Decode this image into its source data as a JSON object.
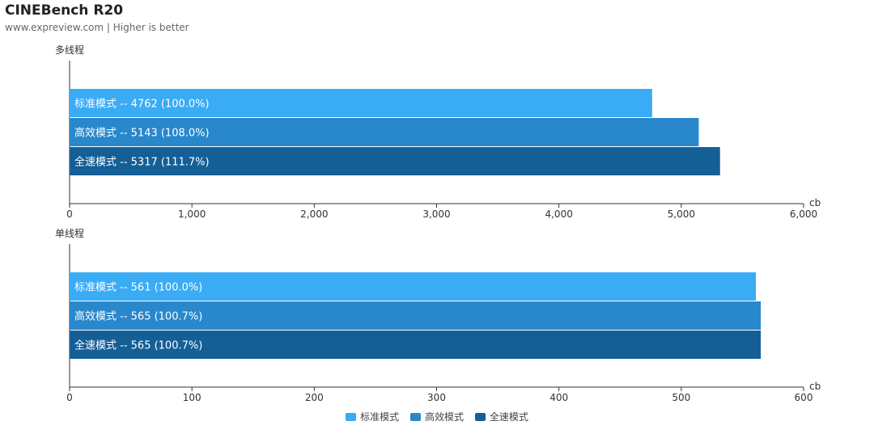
{
  "header": {
    "title": "CINEBench R20",
    "subtitle": "www.expreview.com | Higher is better"
  },
  "colors": {
    "series": [
      "#3aabf5",
      "#2987cc",
      "#155f97"
    ],
    "axis": "#333333",
    "bar_text": "#ffffff"
  },
  "chart_data": [
    {
      "type": "bar",
      "orientation": "horizontal",
      "title": "多线程",
      "xlabel": "cb",
      "xlim": [
        0,
        6000
      ],
      "xticks": [
        "0",
        "1,000",
        "2,000",
        "3,000",
        "4,000",
        "5,000",
        "6,000"
      ],
      "categories": [
        "标准模式",
        "高效模式",
        "全速模式"
      ],
      "values": [
        4762,
        5143,
        5317
      ],
      "data_labels": [
        "标准模式 -- 4762 (100.0%)",
        "高效模式 -- 5143 (108.0%)",
        "全速模式 -- 5317 (111.7%)"
      ],
      "grid": false
    },
    {
      "type": "bar",
      "orientation": "horizontal",
      "title": "单线程",
      "xlabel": "cb",
      "xlim": [
        0,
        600
      ],
      "xticks": [
        "0",
        "100",
        "200",
        "300",
        "400",
        "500",
        "600"
      ],
      "categories": [
        "标准模式",
        "高效模式",
        "全速模式"
      ],
      "values": [
        561,
        565,
        565
      ],
      "data_labels": [
        "标准模式 -- 561 (100.0%)",
        "高效模式 -- 565 (100.7%)",
        "全速模式 -- 565 (100.7%)"
      ],
      "grid": false
    }
  ],
  "legend": {
    "position": "bottom",
    "items": [
      "标准模式",
      "高效模式",
      "全速模式"
    ]
  }
}
